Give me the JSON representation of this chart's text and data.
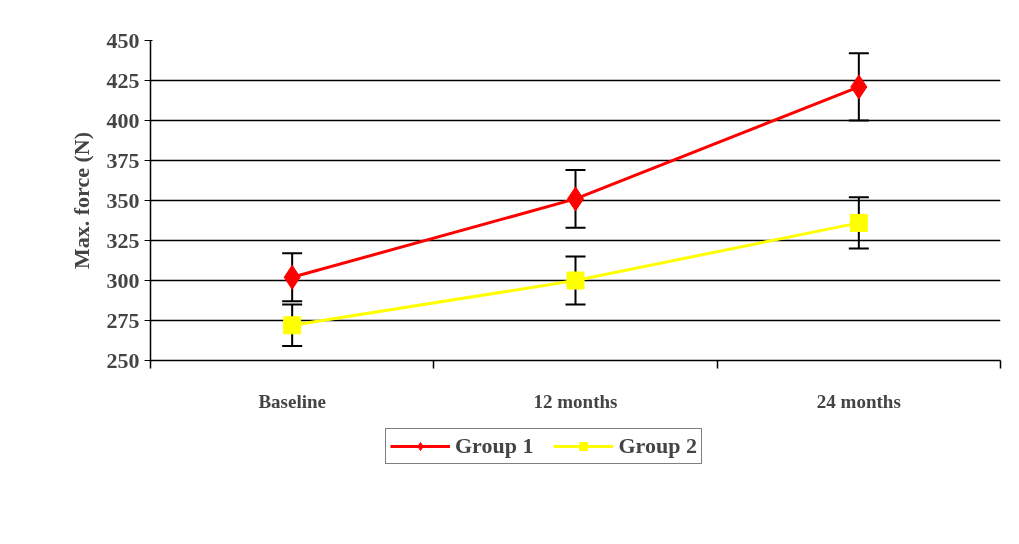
{
  "chart_data": {
    "type": "line",
    "ylabel": "Max. force (N)",
    "categories": [
      "Baseline",
      "12 months",
      "24 months"
    ],
    "series": [
      {
        "name": "Group 1",
        "color": "#ff0000",
        "marker": "diamond",
        "values": [
          302,
          351,
          421
        ],
        "errors": [
          15,
          18,
          21
        ]
      },
      {
        "name": "Group 2",
        "color": "#ffff00",
        "marker": "square",
        "values": [
          272,
          300,
          336
        ],
        "errors": [
          13,
          15,
          16
        ]
      }
    ],
    "ylim": [
      250,
      450
    ],
    "yticks": [
      250,
      275,
      300,
      325,
      350,
      375,
      400,
      425,
      450
    ],
    "grid": "y",
    "legend": "bottom"
  }
}
